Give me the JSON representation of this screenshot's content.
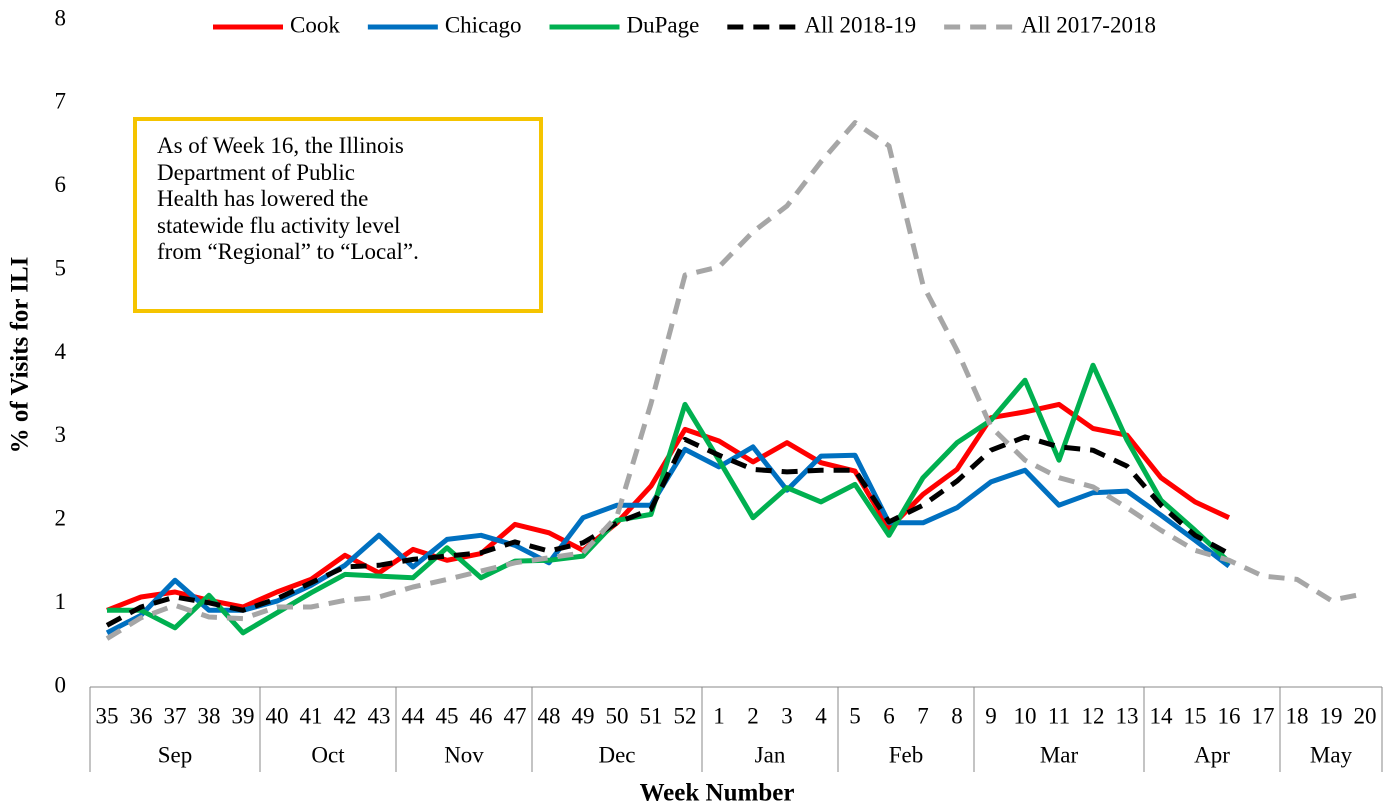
{
  "chart_data": {
    "type": "line",
    "x_label": "Week Number",
    "y_label": "% of Visits for ILI",
    "annotation": [
      "As of Week 16, the Illinois",
      "Department of Public",
      "Health has lowered the",
      "statewide flu activity level",
      "from “Regional” to “Local”."
    ],
    "annotation_border_color": "#f5c400",
    "categories": [
      35,
      36,
      37,
      38,
      39,
      40,
      41,
      42,
      43,
      44,
      45,
      46,
      47,
      48,
      49,
      50,
      51,
      52,
      1,
      2,
      3,
      4,
      5,
      6,
      7,
      8,
      9,
      10,
      11,
      12,
      13,
      14,
      15,
      16,
      17,
      18,
      19,
      20
    ],
    "months": [
      "Sep",
      "Sep",
      "Sep",
      "Sep",
      "Sep",
      "Oct",
      "Oct",
      "Oct",
      "Oct",
      "Nov",
      "Nov",
      "Nov",
      "Nov",
      "Dec",
      "Dec",
      "Dec",
      "Dec",
      "Dec",
      "Jan",
      "Jan",
      "Jan",
      "Jan",
      "Feb",
      "Feb",
      "Feb",
      "Feb",
      "Mar",
      "Mar",
      "Mar",
      "Mar",
      "Mar",
      "Apr",
      "Apr",
      "Apr",
      "Apr",
      "May",
      "May",
      "May"
    ],
    "ylim": [
      0,
      8
    ],
    "yticks": [
      0,
      1,
      2,
      3,
      4,
      5,
      6,
      7,
      8
    ],
    "grid": false,
    "legend": "top",
    "series": [
      {
        "name": "Cook",
        "color": "#ff0000",
        "style": "solid",
        "values": [
          0.92,
          1.08,
          1.14,
          1.04,
          0.96,
          1.14,
          1.29,
          1.58,
          1.37,
          1.65,
          1.52,
          1.6,
          1.95,
          1.85,
          1.64,
          1.97,
          2.41,
          3.09,
          2.95,
          2.7,
          2.93,
          2.69,
          2.59,
          1.9,
          2.31,
          2.61,
          3.23,
          3.3,
          3.39,
          3.1,
          3.02,
          2.51,
          2.22,
          2.03,
          null,
          null,
          null,
          null
        ]
      },
      {
        "name": "Chicago",
        "color": "#0070c0",
        "style": "solid",
        "values": [
          0.65,
          0.86,
          1.28,
          0.92,
          0.92,
          1.03,
          1.22,
          1.46,
          1.82,
          1.44,
          1.77,
          1.82,
          1.7,
          1.49,
          2.03,
          2.18,
          2.18,
          2.85,
          2.64,
          2.88,
          2.36,
          2.77,
          2.78,
          1.97,
          1.97,
          2.15,
          2.46,
          2.6,
          2.18,
          2.33,
          2.35,
          2.06,
          1.76,
          1.45,
          null,
          null,
          null,
          null
        ]
      },
      {
        "name": "DuPage",
        "color": "#00b050",
        "style": "solid",
        "values": [
          0.92,
          0.92,
          0.71,
          1.1,
          0.65,
          0.89,
          1.13,
          1.35,
          1.33,
          1.31,
          1.67,
          1.31,
          1.51,
          1.52,
          1.57,
          2.0,
          2.07,
          3.39,
          2.72,
          2.03,
          2.39,
          2.22,
          2.43,
          1.82,
          2.51,
          2.93,
          3.2,
          3.68,
          2.72,
          3.86,
          2.96,
          2.24,
          1.88,
          1.5,
          null,
          null,
          null,
          null
        ]
      },
      {
        "name": "All 2018-19",
        "color": "#000000",
        "style": "dashed",
        "values": [
          0.74,
          0.96,
          1.08,
          1.01,
          0.92,
          1.06,
          1.25,
          1.44,
          1.46,
          1.53,
          1.57,
          1.61,
          1.74,
          1.63,
          1.73,
          1.97,
          2.13,
          2.97,
          2.78,
          2.61,
          2.58,
          2.6,
          2.6,
          1.98,
          2.18,
          2.47,
          2.84,
          3.0,
          2.88,
          2.84,
          2.65,
          2.18,
          1.82,
          1.6,
          null,
          null,
          null,
          null
        ]
      },
      {
        "name": "All 2017-2018",
        "color": "#a6a6a6",
        "style": "dashed",
        "values": [
          0.58,
          0.83,
          0.98,
          0.84,
          0.82,
          0.96,
          0.96,
          1.04,
          1.08,
          1.2,
          1.29,
          1.39,
          1.49,
          1.55,
          1.61,
          2.05,
          3.4,
          4.94,
          5.04,
          5.46,
          5.77,
          6.3,
          6.77,
          6.49,
          4.82,
          4.04,
          3.12,
          2.72,
          2.51,
          2.4,
          2.15,
          1.88,
          1.64,
          1.52,
          1.33,
          1.29,
          1.04,
          1.12
        ]
      }
    ]
  }
}
